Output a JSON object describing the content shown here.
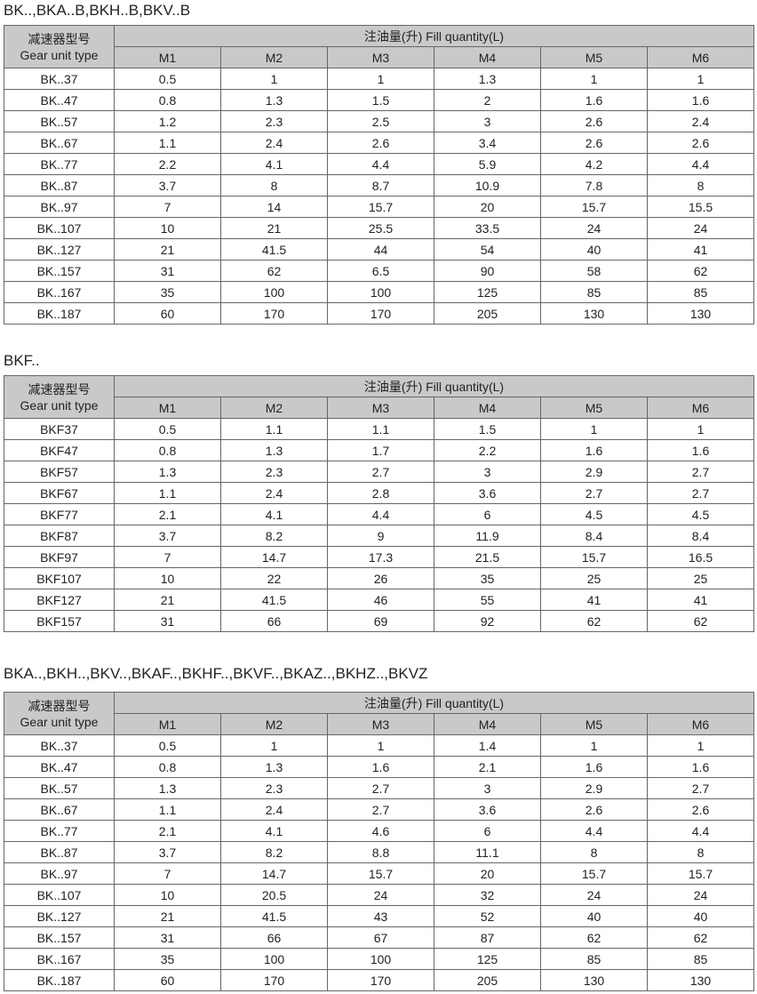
{
  "header": {
    "type_cn": "减速器型号",
    "type_en": "Gear unit type",
    "fill": "注油量(升) Fill quantity(L)",
    "positions": [
      "M1",
      "M2",
      "M3",
      "M4",
      "M5",
      "M6"
    ]
  },
  "tables": [
    {
      "title": "BK..,BKA..B,BKH..B,BKV..B",
      "rows": [
        [
          "BK..37",
          "0.5",
          "1",
          "1",
          "1.3",
          "1",
          "1"
        ],
        [
          "BK..47",
          "0.8",
          "1.3",
          "1.5",
          "2",
          "1.6",
          "1.6"
        ],
        [
          "BK..57",
          "1.2",
          "2.3",
          "2.5",
          "3",
          "2.6",
          "2.4"
        ],
        [
          "BK..67",
          "1.1",
          "2.4",
          "2.6",
          "3.4",
          "2.6",
          "2.6"
        ],
        [
          "BK..77",
          "2.2",
          "4.1",
          "4.4",
          "5.9",
          "4.2",
          "4.4"
        ],
        [
          "BK..87",
          "3.7",
          "8",
          "8.7",
          "10.9",
          "7.8",
          "8"
        ],
        [
          "BK..97",
          "7",
          "14",
          "15.7",
          "20",
          "15.7",
          "15.5"
        ],
        [
          "BK..107",
          "10",
          "21",
          "25.5",
          "33.5",
          "24",
          "24"
        ],
        [
          "BK..127",
          "21",
          "41.5",
          "44",
          "54",
          "40",
          "41"
        ],
        [
          "BK..157",
          "31",
          "62",
          "6.5",
          "90",
          "58",
          "62"
        ],
        [
          "BK..167",
          "35",
          "100",
          "100",
          "125",
          "85",
          "85"
        ],
        [
          "BK..187",
          "60",
          "170",
          "170",
          "205",
          "130",
          "130"
        ]
      ]
    },
    {
      "title": "BKF..",
      "rows": [
        [
          "BKF37",
          "0.5",
          "1.1",
          "1.1",
          "1.5",
          "1",
          "1"
        ],
        [
          "BKF47",
          "0.8",
          "1.3",
          "1.7",
          "2.2",
          "1.6",
          "1.6"
        ],
        [
          "BKF57",
          "1.3",
          "2.3",
          "2.7",
          "3",
          "2.9",
          "2.7"
        ],
        [
          "BKF67",
          "1.1",
          "2.4",
          "2.8",
          "3.6",
          "2.7",
          "2.7"
        ],
        [
          "BKF77",
          "2.1",
          "4.1",
          "4.4",
          "6",
          "4.5",
          "4.5"
        ],
        [
          "BKF87",
          "3.7",
          "8.2",
          "9",
          "11.9",
          "8.4",
          "8.4"
        ],
        [
          "BKF97",
          "7",
          "14.7",
          "17.3",
          "21.5",
          "15.7",
          "16.5"
        ],
        [
          "BKF107",
          "10",
          "22",
          "26",
          "35",
          "25",
          "25"
        ],
        [
          "BKF127",
          "21",
          "41.5",
          "46",
          "55",
          "41",
          "41"
        ],
        [
          "BKF157",
          "31",
          "66",
          "69",
          "92",
          "62",
          "62"
        ]
      ]
    },
    {
      "title": "BKA..,BKH..,BKV..,BKAF..,BKHF..,BKVF..,BKAZ..,BKHZ..,BKVZ",
      "rows": [
        [
          "BK..37",
          "0.5",
          "1",
          "1",
          "1.4",
          "1",
          "1"
        ],
        [
          "BK..47",
          "0.8",
          "1.3",
          "1.6",
          "2.1",
          "1.6",
          "1.6"
        ],
        [
          "BK..57",
          "1.3",
          "2.3",
          "2.7",
          "3",
          "2.9",
          "2.7"
        ],
        [
          "BK..67",
          "1.1",
          "2.4",
          "2.7",
          "3.6",
          "2.6",
          "2.6"
        ],
        [
          "BK..77",
          "2.1",
          "4.1",
          "4.6",
          "6",
          "4.4",
          "4.4"
        ],
        [
          "BK..87",
          "3.7",
          "8.2",
          "8.8",
          "11.1",
          "8",
          "8"
        ],
        [
          "BK..97",
          "7",
          "14.7",
          "15.7",
          "20",
          "15.7",
          "15.7"
        ],
        [
          "BK..107",
          "10",
          "20.5",
          "24",
          "32",
          "24",
          "24"
        ],
        [
          "BK..127",
          "21",
          "41.5",
          "43",
          "52",
          "40",
          "40"
        ],
        [
          "BK..157",
          "31",
          "66",
          "67",
          "87",
          "62",
          "62"
        ],
        [
          "BK..167",
          "35",
          "100",
          "100",
          "125",
          "85",
          "85"
        ],
        [
          "BK..187",
          "60",
          "170",
          "170",
          "205",
          "130",
          "130"
        ]
      ]
    }
  ]
}
